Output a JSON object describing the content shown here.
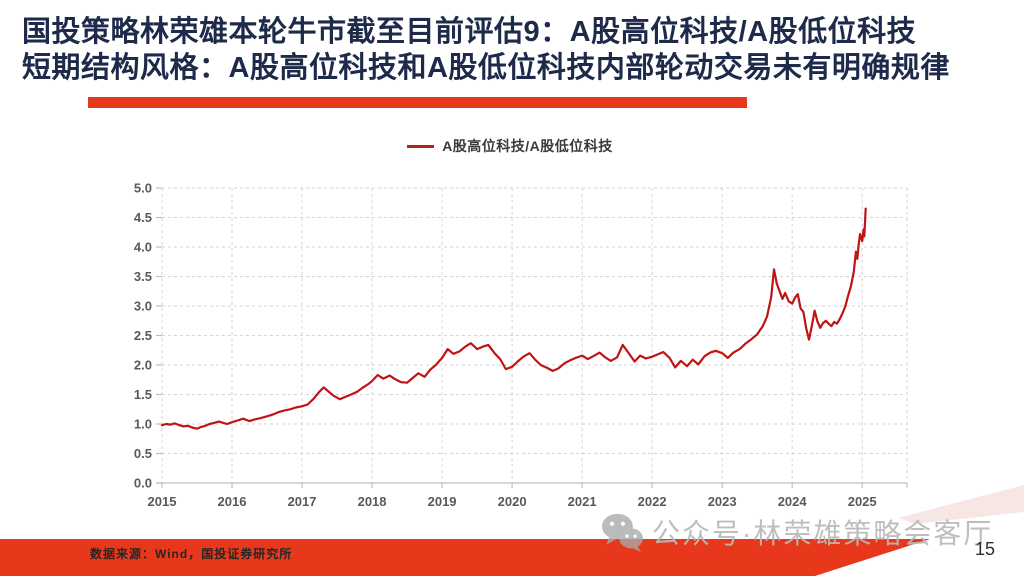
{
  "header": {
    "title_line1": "国投策略林荣雄本轮牛市截至目前评估9：A股高位科技/A股低位科技",
    "title_line2": "短期结构风格：A股高位科技和A股低位科技内部轮动交易未有明确规律"
  },
  "theme": {
    "accent_red": "#e8381c",
    "title_navy": "#1e2a4a",
    "line_red": "#c01414",
    "legend_red": "#b2241c",
    "grid_gray": "#d6d3d3",
    "axis_gray": "#bfbfbf",
    "tick_text_gray": "#595959",
    "watermark_gray": "#b9b9b9",
    "pale_corner": "#f6e7e4"
  },
  "chart_data": {
    "type": "line",
    "title": "",
    "legend": "A股高位科技/A股低位科技",
    "legend_position": "top-center",
    "xlabel": "",
    "ylabel": "",
    "grid": "dashed-both",
    "xlim": [
      2015,
      2025.64
    ],
    "ylim": [
      0,
      5
    ],
    "x_ticks": [
      2015,
      2016,
      2017,
      2018,
      2019,
      2020,
      2021,
      2022,
      2023,
      2024,
      2025
    ],
    "y_ticks": [
      0.0,
      0.5,
      1.0,
      1.5,
      2.0,
      2.5,
      3.0,
      3.5,
      4.0,
      4.5,
      5.0
    ],
    "series": [
      {
        "name": "A股高位科技/A股低位科技",
        "color": "#c01414",
        "points": [
          [
            2015.0,
            0.98
          ],
          [
            2015.06,
            1.0
          ],
          [
            2015.12,
            0.99
          ],
          [
            2015.18,
            1.01
          ],
          [
            2015.25,
            0.98
          ],
          [
            2015.31,
            0.96
          ],
          [
            2015.37,
            0.97
          ],
          [
            2015.43,
            0.94
          ],
          [
            2015.5,
            0.92
          ],
          [
            2015.56,
            0.95
          ],
          [
            2015.62,
            0.97
          ],
          [
            2015.68,
            1.0
          ],
          [
            2015.75,
            1.02
          ],
          [
            2015.81,
            1.04
          ],
          [
            2015.87,
            1.02
          ],
          [
            2015.93,
            1.0
          ],
          [
            2016.0,
            1.03
          ],
          [
            2016.08,
            1.06
          ],
          [
            2016.16,
            1.09
          ],
          [
            2016.25,
            1.05
          ],
          [
            2016.33,
            1.08
          ],
          [
            2016.41,
            1.1
          ],
          [
            2016.5,
            1.13
          ],
          [
            2016.58,
            1.16
          ],
          [
            2016.66,
            1.2
          ],
          [
            2016.75,
            1.23
          ],
          [
            2016.83,
            1.25
          ],
          [
            2016.91,
            1.28
          ],
          [
            2017.0,
            1.3
          ],
          [
            2017.08,
            1.33
          ],
          [
            2017.16,
            1.42
          ],
          [
            2017.25,
            1.55
          ],
          [
            2017.31,
            1.62
          ],
          [
            2017.37,
            1.56
          ],
          [
            2017.45,
            1.48
          ],
          [
            2017.54,
            1.42
          ],
          [
            2017.62,
            1.46
          ],
          [
            2017.7,
            1.5
          ],
          [
            2017.79,
            1.55
          ],
          [
            2017.87,
            1.62
          ],
          [
            2017.95,
            1.68
          ],
          [
            2018.0,
            1.73
          ],
          [
            2018.08,
            1.83
          ],
          [
            2018.16,
            1.77
          ],
          [
            2018.25,
            1.82
          ],
          [
            2018.33,
            1.76
          ],
          [
            2018.41,
            1.71
          ],
          [
            2018.5,
            1.7
          ],
          [
            2018.58,
            1.78
          ],
          [
            2018.66,
            1.86
          ],
          [
            2018.75,
            1.8
          ],
          [
            2018.83,
            1.92
          ],
          [
            2018.91,
            2.0
          ],
          [
            2019.0,
            2.12
          ],
          [
            2019.08,
            2.27
          ],
          [
            2019.16,
            2.19
          ],
          [
            2019.25,
            2.23
          ],
          [
            2019.33,
            2.31
          ],
          [
            2019.41,
            2.37
          ],
          [
            2019.5,
            2.27
          ],
          [
            2019.58,
            2.31
          ],
          [
            2019.66,
            2.34
          ],
          [
            2019.75,
            2.2
          ],
          [
            2019.83,
            2.1
          ],
          [
            2019.91,
            1.93
          ],
          [
            2020.0,
            1.97
          ],
          [
            2020.08,
            2.06
          ],
          [
            2020.16,
            2.14
          ],
          [
            2020.25,
            2.2
          ],
          [
            2020.33,
            2.09
          ],
          [
            2020.41,
            2.0
          ],
          [
            2020.5,
            1.95
          ],
          [
            2020.58,
            1.9
          ],
          [
            2020.66,
            1.94
          ],
          [
            2020.75,
            2.03
          ],
          [
            2020.83,
            2.08
          ],
          [
            2020.91,
            2.12
          ],
          [
            2021.0,
            2.16
          ],
          [
            2021.08,
            2.1
          ],
          [
            2021.16,
            2.15
          ],
          [
            2021.25,
            2.21
          ],
          [
            2021.33,
            2.13
          ],
          [
            2021.41,
            2.07
          ],
          [
            2021.5,
            2.13
          ],
          [
            2021.58,
            2.34
          ],
          [
            2021.66,
            2.21
          ],
          [
            2021.75,
            2.06
          ],
          [
            2021.83,
            2.16
          ],
          [
            2021.91,
            2.11
          ],
          [
            2022.0,
            2.14
          ],
          [
            2022.08,
            2.18
          ],
          [
            2022.16,
            2.22
          ],
          [
            2022.25,
            2.12
          ],
          [
            2022.33,
            1.96
          ],
          [
            2022.41,
            2.07
          ],
          [
            2022.5,
            1.98
          ],
          [
            2022.58,
            2.09
          ],
          [
            2022.66,
            2.01
          ],
          [
            2022.75,
            2.15
          ],
          [
            2022.83,
            2.21
          ],
          [
            2022.91,
            2.24
          ],
          [
            2023.0,
            2.2
          ],
          [
            2023.08,
            2.12
          ],
          [
            2023.16,
            2.21
          ],
          [
            2023.25,
            2.27
          ],
          [
            2023.33,
            2.36
          ],
          [
            2023.41,
            2.43
          ],
          [
            2023.5,
            2.52
          ],
          [
            2023.58,
            2.66
          ],
          [
            2023.64,
            2.82
          ],
          [
            2023.7,
            3.15
          ],
          [
            2023.74,
            3.62
          ],
          [
            2023.78,
            3.38
          ],
          [
            2023.82,
            3.25
          ],
          [
            2023.86,
            3.12
          ],
          [
            2023.9,
            3.22
          ],
          [
            2023.95,
            3.08
          ],
          [
            2024.0,
            3.04
          ],
          [
            2024.04,
            3.14
          ],
          [
            2024.08,
            3.2
          ],
          [
            2024.12,
            2.96
          ],
          [
            2024.16,
            2.9
          ],
          [
            2024.2,
            2.62
          ],
          [
            2024.24,
            2.43
          ],
          [
            2024.28,
            2.66
          ],
          [
            2024.32,
            2.92
          ],
          [
            2024.36,
            2.74
          ],
          [
            2024.4,
            2.63
          ],
          [
            2024.44,
            2.71
          ],
          [
            2024.48,
            2.75
          ],
          [
            2024.52,
            2.7
          ],
          [
            2024.56,
            2.66
          ],
          [
            2024.6,
            2.73
          ],
          [
            2024.64,
            2.7
          ],
          [
            2024.68,
            2.78
          ],
          [
            2024.72,
            2.88
          ],
          [
            2024.76,
            3.0
          ],
          [
            2024.8,
            3.18
          ],
          [
            2024.84,
            3.34
          ],
          [
            2024.88,
            3.58
          ],
          [
            2024.91,
            3.92
          ],
          [
            2024.93,
            3.8
          ],
          [
            2024.95,
            4.05
          ],
          [
            2024.97,
            4.22
          ],
          [
            2025.0,
            4.1
          ],
          [
            2025.02,
            4.3
          ],
          [
            2025.03,
            4.18
          ],
          [
            2025.05,
            4.65
          ]
        ]
      }
    ]
  },
  "footer": {
    "source": "数据来源：Wind，国投证券研究所",
    "watermark": "公众号·林荣雄策略会客厅",
    "page_number": "15"
  }
}
